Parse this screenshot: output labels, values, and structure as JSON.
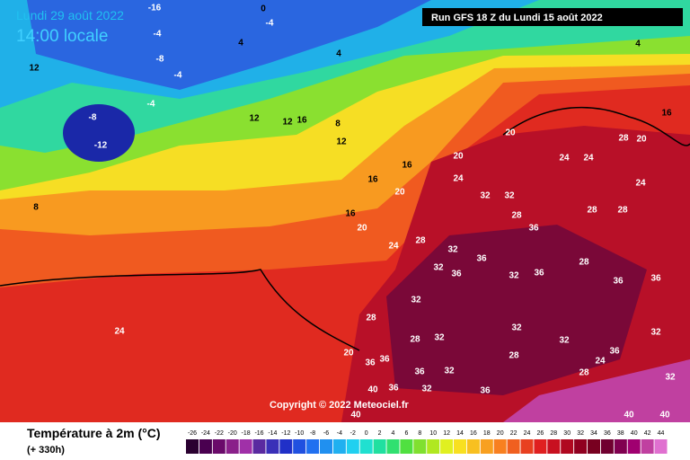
{
  "header": {
    "date": "Lundi 29 août 2022",
    "time": "14:00 locale",
    "run": "Run GFS 18 Z du Lundi 15 août 2022"
  },
  "copyright": "Copyright © 2022 Meteociel.fr",
  "legend": {
    "title": "Température à 2m (°C)",
    "lead": "(+ 330h)",
    "values": [
      -26,
      -24,
      -22,
      -20,
      -18,
      -16,
      -14,
      -12,
      -10,
      -8,
      -6,
      -4,
      -2,
      0,
      2,
      4,
      6,
      8,
      10,
      12,
      14,
      16,
      18,
      20,
      22,
      24,
      26,
      28,
      30,
      32,
      34,
      36,
      38,
      40,
      42,
      44
    ],
    "colors": [
      "#2a0030",
      "#4a0050",
      "#6a0a6a",
      "#8a208a",
      "#a030a8",
      "#5a2aa0",
      "#3a30b8",
      "#2030c8",
      "#2050e0",
      "#2070f0",
      "#2090f0",
      "#20b0f0",
      "#20d0f0",
      "#20e0d0",
      "#20e0a0",
      "#30e070",
      "#50e040",
      "#80e030",
      "#b0e820",
      "#e0f020",
      "#f8e020",
      "#f8c020",
      "#f8a020",
      "#f88020",
      "#f06020",
      "#e84020",
      "#e02020",
      "#c81020",
      "#b00820",
      "#900020",
      "#780020",
      "#700030",
      "#800050",
      "#a00070",
      "#c040a0",
      "#e070d0"
    ]
  },
  "map": {
    "labels": [
      -16,
      0,
      -4,
      -4,
      4,
      -8,
      -4,
      4,
      4,
      12,
      -8,
      -12,
      -4,
      12,
      12,
      16,
      8,
      12,
      16,
      20,
      20,
      16,
      20,
      16,
      20,
      24,
      28,
      24,
      32,
      32,
      28,
      36,
      24,
      28,
      20,
      24,
      16,
      24,
      28,
      28,
      32,
      36,
      32,
      28,
      32,
      36,
      32,
      36,
      28,
      36,
      36,
      32,
      28,
      36,
      36,
      32,
      32,
      28,
      32,
      28,
      24,
      36,
      32,
      32,
      36,
      32,
      40,
      36,
      40,
      40,
      40,
      20,
      24,
      36,
      8
    ]
  }
}
